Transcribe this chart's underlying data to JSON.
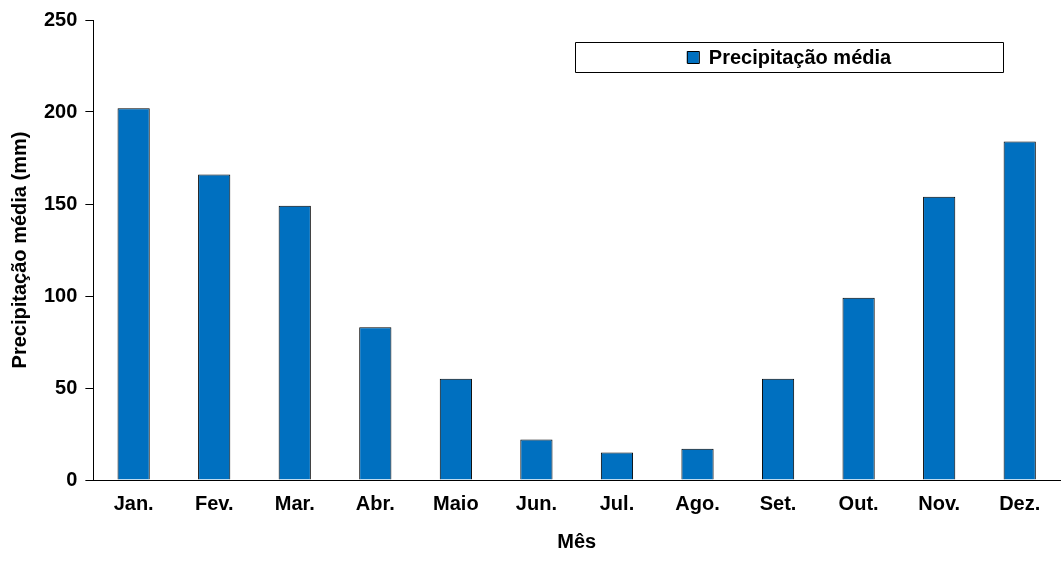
{
  "chart_data": {
    "type": "bar",
    "xlabel": "Mês",
    "ylabel": "Precipitação média (mm)",
    "categories": [
      "Jan.",
      "Fev.",
      "Mar.",
      "Abr.",
      "Maio",
      "Jun.",
      "Jul.",
      "Ago.",
      "Set.",
      "Out.",
      "Nov.",
      "Dez."
    ],
    "series": [
      {
        "name": "Precipitação média",
        "color": "#0070c0",
        "values": [
          202,
          166,
          149,
          83,
          55,
          22,
          15,
          17,
          55,
          99,
          154,
          184
        ]
      }
    ],
    "ylim": [
      0,
      250
    ],
    "yticks": [
      0,
      50,
      100,
      150,
      200,
      250
    ],
    "grid": false,
    "legend": "top right"
  }
}
